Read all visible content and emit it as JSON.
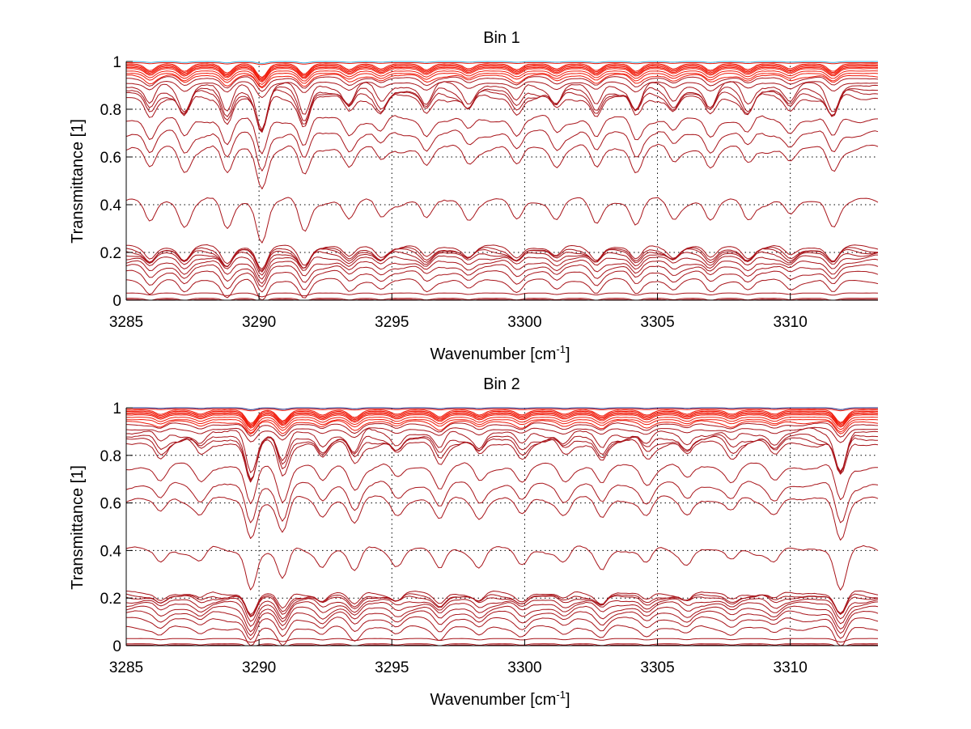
{
  "chart_data": [
    {
      "type": "line",
      "title": "Bin 1",
      "xlabel": "Wavenumber [cm",
      "xlabel_sup": "-1",
      "xlabel_end": "]",
      "ylabel": "Transmittance [1]",
      "xlim": [
        3285,
        3313.3
      ],
      "ylim": [
        0,
        1
      ],
      "xticks": [
        3285,
        3290,
        3295,
        3300,
        3305,
        3310
      ],
      "xtick_labels": [
        "3285",
        "3290",
        "3295",
        "3300",
        "3305",
        "3310"
      ],
      "yticks": [
        0,
        0.2,
        0.4,
        0.6,
        0.8,
        1
      ],
      "ytick_labels": [
        "0",
        "0.2",
        "0.4",
        "0.6",
        "0.8",
        "1"
      ],
      "grid": true,
      "top_line_color": "#33b5e5",
      "series_baselines": [
        1.0,
        0.995,
        0.99,
        0.985,
        0.98,
        0.975,
        0.97,
        0.96,
        0.95,
        0.94,
        0.93,
        0.91,
        0.895,
        0.875,
        0.865,
        0.85,
        0.76,
        0.7,
        0.635,
        0.41,
        0.22,
        0.21,
        0.205,
        0.195,
        0.18,
        0.16,
        0.14,
        0.115,
        0.08,
        0.03,
        0.008,
        0.003
      ],
      "absorption_lines": [
        {
          "x": 3285.9,
          "depth": 0.08
        },
        {
          "x": 3287.2,
          "depth": 0.09
        },
        {
          "x": 3288.8,
          "depth": 0.11
        },
        {
          "x": 3290.1,
          "depth": 0.16
        },
        {
          "x": 3291.7,
          "depth": 0.12
        },
        {
          "x": 3293.4,
          "depth": 0.07
        },
        {
          "x": 3294.6,
          "depth": 0.06
        },
        {
          "x": 3296.3,
          "depth": 0.07
        },
        {
          "x": 3297.9,
          "depth": 0.06
        },
        {
          "x": 3299.7,
          "depth": 0.07
        },
        {
          "x": 3301.2,
          "depth": 0.06
        },
        {
          "x": 3302.7,
          "depth": 0.08
        },
        {
          "x": 3304.2,
          "depth": 0.09
        },
        {
          "x": 3305.6,
          "depth": 0.06
        },
        {
          "x": 3307.0,
          "depth": 0.08
        },
        {
          "x": 3308.4,
          "depth": 0.07
        },
        {
          "x": 3310.0,
          "depth": 0.06
        },
        {
          "x": 3311.6,
          "depth": 0.09
        }
      ]
    },
    {
      "type": "line",
      "title": "Bin 2",
      "xlabel": "Wavenumber [cm",
      "xlabel_sup": "-1",
      "xlabel_end": "]",
      "ylabel": "Transmittance [1]",
      "xlim": [
        3285,
        3313.3
      ],
      "ylim": [
        0,
        1
      ],
      "xticks": [
        3285,
        3290,
        3295,
        3300,
        3305,
        3310
      ],
      "xtick_labels": [
        "3285",
        "3290",
        "3295",
        "3300",
        "3305",
        "3310"
      ],
      "yticks": [
        0,
        0.2,
        0.4,
        0.6,
        0.8,
        1
      ],
      "ytick_labels": [
        "0",
        "0.2",
        "0.4",
        "0.6",
        "0.8",
        "1"
      ],
      "grid": true,
      "top_line_color": "#1a237e",
      "series_baselines": [
        1.0,
        0.995,
        0.99,
        0.985,
        0.98,
        0.975,
        0.97,
        0.96,
        0.95,
        0.94,
        0.93,
        0.91,
        0.895,
        0.875,
        0.865,
        0.85,
        0.75,
        0.67,
        0.61,
        0.4,
        0.22,
        0.21,
        0.205,
        0.19,
        0.175,
        0.155,
        0.135,
        0.11,
        0.075,
        0.03,
        0.008,
        0.003
      ],
      "absorption_lines": [
        {
          "x": 3286.3,
          "depth": 0.05
        },
        {
          "x": 3287.8,
          "depth": 0.05
        },
        {
          "x": 3289.7,
          "depth": 0.16
        },
        {
          "x": 3290.9,
          "depth": 0.13
        },
        {
          "x": 3292.4,
          "depth": 0.06
        },
        {
          "x": 3293.6,
          "depth": 0.09
        },
        {
          "x": 3295.2,
          "depth": 0.05
        },
        {
          "x": 3296.8,
          "depth": 0.08
        },
        {
          "x": 3298.3,
          "depth": 0.06
        },
        {
          "x": 3299.9,
          "depth": 0.06
        },
        {
          "x": 3301.5,
          "depth": 0.05
        },
        {
          "x": 3302.9,
          "depth": 0.07
        },
        {
          "x": 3304.6,
          "depth": 0.06
        },
        {
          "x": 3306.1,
          "depth": 0.05
        },
        {
          "x": 3307.8,
          "depth": 0.05
        },
        {
          "x": 3309.4,
          "depth": 0.05
        },
        {
          "x": 3311.9,
          "depth": 0.15
        }
      ]
    }
  ]
}
